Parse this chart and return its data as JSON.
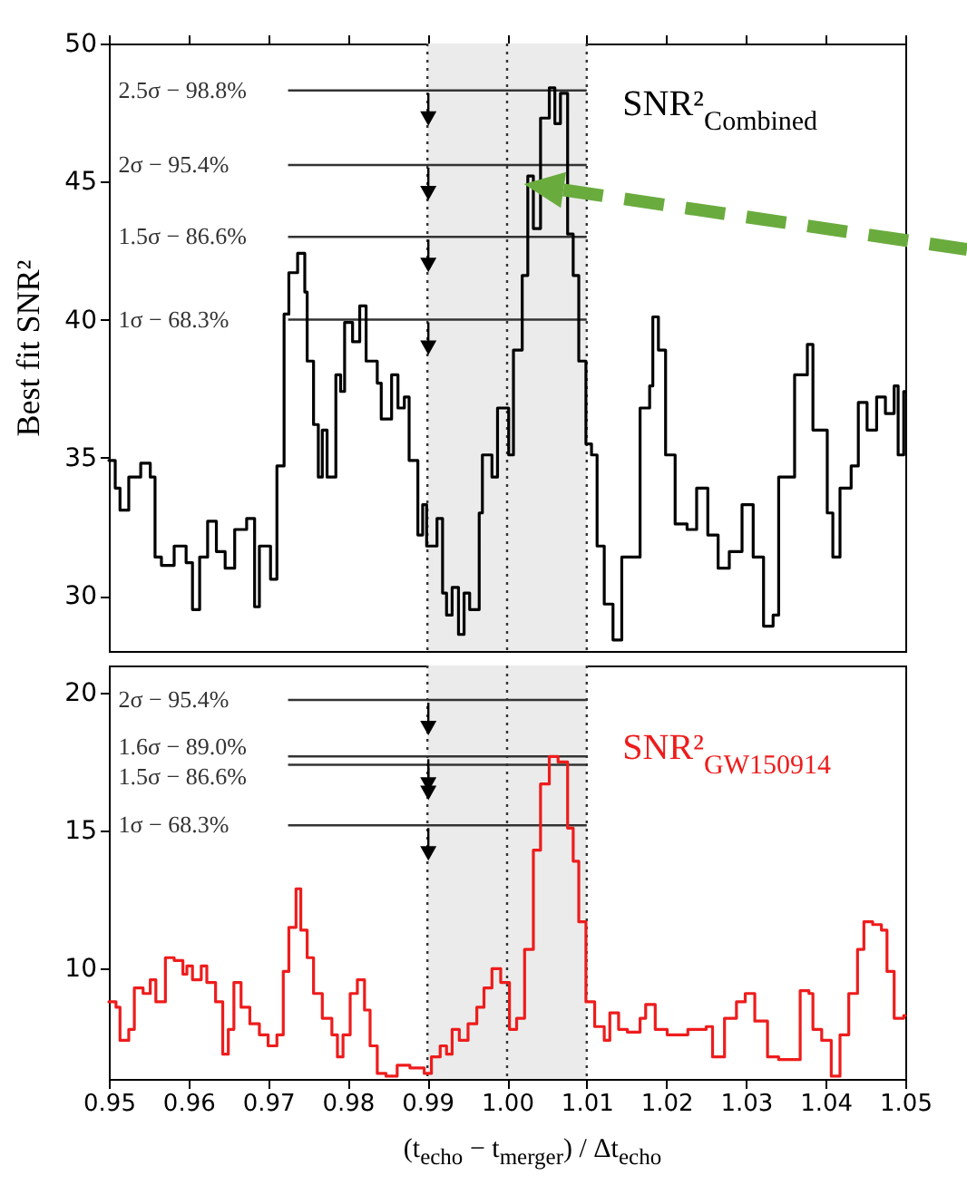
{
  "chart_data": [
    {
      "type": "step",
      "ylabel": "Best fit SNR²",
      "xlim": [
        0.95,
        1.05
      ],
      "xticks": [
        0.95,
        0.96,
        0.97,
        0.98,
        0.99,
        1.0,
        1.01,
        1.02,
        1.03,
        1.04,
        1.05
      ],
      "ylim": [
        28,
        50
      ],
      "yticks": [
        30,
        35,
        40,
        45,
        50
      ],
      "tick_labels": "y",
      "grid": false,
      "legend": "top right",
      "bands": [
        {
          "axis": "x",
          "from": 0.99,
          "to": 1.01,
          "color": "#ebebeb"
        }
      ],
      "ref_lines": [
        {
          "axis": "x",
          "value": 0.99,
          "line_style": "dotted"
        },
        {
          "axis": "x",
          "value": 1.0,
          "line_style": "dotted"
        },
        {
          "axis": "x",
          "value": 1.01,
          "line_style": "dotted"
        },
        {
          "axis": "y",
          "value": 48.3,
          "label": "2.5σ − 98.8%"
        },
        {
          "axis": "y",
          "value": 45.6,
          "label": "2σ − 95.4%"
        },
        {
          "axis": "y",
          "value": 43.0,
          "label": "1.5σ − 86.6%"
        },
        {
          "axis": "y",
          "value": 40.0,
          "label": "1σ − 68.3%"
        }
      ],
      "series": [
        {
          "name": "SNR²$_{Combined}$",
          "color": "#000000",
          "x": [
            0.95,
            0.9508,
            0.9514,
            0.9525,
            0.9527,
            0.954,
            0.9552,
            0.9558,
            0.9566,
            0.9582,
            0.9597,
            0.9605,
            0.9614,
            0.9624,
            0.9635,
            0.9646,
            0.9658,
            0.9673,
            0.9683,
            0.9689,
            0.9703,
            0.9711,
            0.972,
            0.9726,
            0.9737,
            0.9746,
            0.9749,
            0.9757,
            0.9763,
            0.9768,
            0.9774,
            0.9785,
            0.9791,
            0.9796,
            0.9806,
            0.9815,
            0.9823,
            0.9837,
            0.9842,
            0.9855,
            0.9863,
            0.9871,
            0.9877,
            0.9888,
            0.9894,
            0.9899,
            0.9912,
            0.9919,
            0.9924,
            0.9931,
            0.9939,
            0.9946,
            0.9953,
            0.9965,
            0.9969,
            0.9981,
            0.9988,
            1.0002,
            1.0008,
            1.0019,
            1.0026,
            1.0033,
            1.0042,
            1.0053,
            1.006,
            1.0067,
            1.0076,
            1.0083,
            1.009,
            1.0099,
            1.0106,
            1.0113,
            1.0122,
            1.0133,
            1.0144,
            1.0167,
            1.0179,
            1.0183,
            1.019,
            1.0199,
            1.0211,
            1.0226,
            1.0238,
            1.0252,
            1.0265,
            1.0279,
            1.0295,
            1.0309,
            1.0322,
            1.0334,
            1.0341,
            1.0361,
            1.0377,
            1.0384,
            1.0402,
            1.0409,
            1.0418,
            1.0432,
            1.0441,
            1.0452,
            1.0464,
            1.0475,
            1.0486,
            1.0491,
            1.0498,
            1.05
          ],
          "values": [
            34.9,
            33.9,
            33.1,
            34.3,
            34.3,
            34.8,
            34.3,
            31.4,
            31.1,
            31.8,
            31.2,
            29.5,
            31.4,
            32.7,
            31.6,
            31.0,
            32.4,
            32.8,
            29.6,
            31.8,
            30.6,
            34.7,
            40.2,
            41.7,
            42.4,
            41.0,
            38.5,
            36.2,
            34.3,
            36.0,
            34.3,
            38.0,
            37.4,
            39.9,
            39.2,
            40.5,
            38.5,
            37.7,
            36.4,
            38.0,
            36.8,
            37.2,
            34.9,
            32.2,
            33.3,
            31.8,
            32.8,
            30.1,
            29.3,
            30.3,
            28.6,
            30.1,
            29.5,
            33.0,
            35.1,
            34.3,
            36.8,
            35.1,
            38.9,
            41.6,
            45.2,
            43.3,
            47.3,
            48.4,
            47.1,
            48.2,
            43.1,
            41.6,
            38.5,
            35.5,
            35.1,
            31.8,
            29.7,
            28.4,
            31.4,
            36.8,
            37.6,
            40.1,
            38.9,
            35.1,
            32.6,
            32.4,
            33.9,
            32.2,
            31.0,
            31.6,
            33.3,
            31.4,
            28.9,
            29.3,
            34.3,
            38.0,
            39.1,
            36.0,
            33.0,
            31.4,
            33.9,
            34.7,
            37.0,
            36.0,
            37.2,
            36.6,
            37.6,
            35.1,
            37.4,
            37.4
          ]
        }
      ]
    },
    {
      "type": "step",
      "xlabel": "(t$_{echo}$ − t$_{merger}$) / Δt$_{echo}$",
      "xlim": [
        0.95,
        1.05
      ],
      "xticks": [
        0.95,
        0.96,
        0.97,
        0.98,
        0.99,
        {
          "value": 1.0,
          "label": "1.00"
        },
        1.01,
        1.02,
        1.03,
        1.04,
        1.05
      ],
      "ylim": [
        6,
        21
      ],
      "yticks": [
        10,
        15,
        20
      ],
      "grid": false,
      "legend": "top right",
      "bands": [
        {
          "axis": "x",
          "from": 0.99,
          "to": 1.01,
          "color": "#ebebeb"
        }
      ],
      "ref_lines": [
        {
          "axis": "x",
          "value": 0.99,
          "line_style": "dotted"
        },
        {
          "axis": "x",
          "value": 1.0,
          "line_style": "dotted"
        },
        {
          "axis": "x",
          "value": 1.01,
          "line_style": "dotted"
        },
        {
          "axis": "y",
          "value": 19.75,
          "label": "2σ − 95.4%"
        },
        {
          "axis": "y",
          "value": 17.7,
          "label": "1.6σ − 89.0%"
        },
        {
          "axis": "y",
          "value": 17.4,
          "label": "1.5σ − 86.6%"
        },
        {
          "axis": "y",
          "value": 15.2,
          "label": "1σ − 68.3%"
        }
      ],
      "series": [
        {
          "name": "SNR²$_{GW150914}$",
          "color": "#ee1c1c",
          "x": [
            0.95,
            0.9509,
            0.9514,
            0.9525,
            0.9532,
            0.9543,
            0.9552,
            0.9559,
            0.9571,
            0.9582,
            0.9593,
            0.9598,
            0.9605,
            0.9616,
            0.9623,
            0.9634,
            0.9643,
            0.965,
            0.9657,
            0.9666,
            0.9677,
            0.9689,
            0.97,
            0.9711,
            0.9719,
            0.9726,
            0.9735,
            0.9741,
            0.9749,
            0.9757,
            0.9768,
            0.978,
            0.9787,
            0.9794,
            0.9803,
            0.9812,
            0.9821,
            0.9828,
            0.9837,
            0.9848,
            0.9862,
            0.9878,
            0.9896,
            0.9905,
            0.9916,
            0.9924,
            0.9931,
            0.994,
            0.9951,
            0.9962,
            0.9971,
            0.9981,
            0.9992,
            1.0003,
            1.0012,
            1.0022,
            1.0033,
            1.0042,
            1.0053,
            1.0064,
            1.0076,
            1.0083,
            1.009,
            1.0099,
            1.011,
            1.0122,
            1.0129,
            1.014,
            1.0151,
            1.0167,
            1.0174,
            1.0186,
            1.0201,
            1.0227,
            1.025,
            1.0258,
            1.0273,
            1.0288,
            1.0299,
            1.0311,
            1.0327,
            1.0341,
            1.0357,
            1.0368,
            1.0379,
            1.0384,
            1.0395,
            1.0407,
            1.0418,
            1.0429,
            1.044,
            1.0448,
            1.0459,
            1.047,
            1.0477,
            1.0486,
            1.0498,
            1.05
          ],
          "values": [
            8.8,
            8.6,
            7.4,
            7.8,
            9.3,
            9.1,
            9.6,
            8.8,
            10.4,
            10.3,
            9.8,
            10.1,
            9.6,
            10.1,
            9.5,
            8.8,
            6.9,
            7.8,
            9.5,
            8.6,
            8.0,
            7.6,
            7.2,
            7.6,
            9.9,
            11.5,
            12.9,
            11.4,
            10.4,
            9.1,
            8.2,
            7.6,
            6.8,
            7.6,
            9.1,
            9.6,
            8.5,
            7.2,
            6.2,
            6.1,
            6.5,
            6.4,
            6.2,
            6.8,
            7.2,
            6.9,
            7.8,
            7.4,
            8.0,
            8.6,
            9.3,
            10.0,
            9.5,
            7.8,
            8.2,
            10.7,
            14.3,
            16.7,
            17.7,
            17.5,
            15.1,
            13.9,
            11.7,
            8.8,
            7.9,
            7.4,
            8.4,
            7.8,
            7.7,
            8.2,
            8.7,
            7.8,
            7.6,
            7.8,
            7.9,
            6.8,
            8.2,
            8.8,
            9.1,
            8.1,
            6.8,
            6.7,
            6.7,
            9.2,
            9.1,
            7.8,
            7.4,
            6.1,
            7.6,
            9.1,
            10.7,
            11.7,
            11.6,
            11.4,
            9.9,
            8.2,
            8.3,
            8.3
          ]
        }
      ]
    }
  ]
}
